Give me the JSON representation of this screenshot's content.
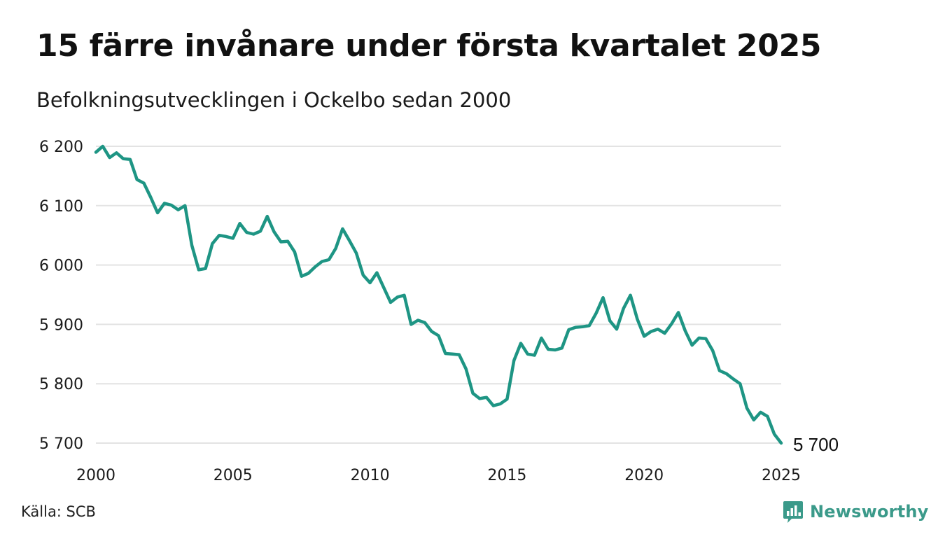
{
  "title": "15 färre invånare under första kvartalet 2025",
  "subtitle": "Befolkningsutvecklingen i Ockelbo sedan 2000",
  "source": "Källa: SCB",
  "brand": {
    "name": "Newsworthy",
    "icon": "newsworthy-chart-bubble-icon",
    "color": "#3b9a8a"
  },
  "chart_data": {
    "type": "line",
    "title": "15 färre invånare under första kvartalet 2025",
    "subtitle": "Befolkningsutvecklingen i Ockelbo sedan 2000",
    "xlabel": "",
    "ylabel": "",
    "xlim": [
      2000,
      2025
    ],
    "ylim": [
      5700,
      6200
    ],
    "grid": true,
    "legend": "none",
    "line_color": "#1e9584",
    "grid_color": "#e3e3e3",
    "x_ticks": [
      {
        "value": 2000,
        "label": "2000"
      },
      {
        "value": 2005,
        "label": "2005"
      },
      {
        "value": 2010,
        "label": "2010"
      },
      {
        "value": 2015,
        "label": "2015"
      },
      {
        "value": 2020,
        "label": "2020"
      },
      {
        "value": 2025,
        "label": "2025"
      }
    ],
    "y_ticks": [
      {
        "value": 5700,
        "label": "5 700"
      },
      {
        "value": 5800,
        "label": "5 800"
      },
      {
        "value": 5900,
        "label": "5 900"
      },
      {
        "value": 6000,
        "label": "6 000"
      },
      {
        "value": 6100,
        "label": "6 100"
      },
      {
        "value": 6200,
        "label": "6 200"
      }
    ],
    "end_label": "5 700",
    "series": [
      {
        "x": [
          "2000-Q1",
          "2000-Q2",
          "2000-Q3",
          "2000-Q4",
          "2001-Q1",
          "2001-Q2",
          "2001-Q3",
          "2001-Q4",
          "2002-Q1",
          "2002-Q2",
          "2002-Q3",
          "2002-Q4",
          "2003-Q1",
          "2003-Q2",
          "2003-Q3",
          "2003-Q4",
          "2004-Q1",
          "2004-Q2",
          "2004-Q3",
          "2004-Q4",
          "2005-Q1",
          "2005-Q2",
          "2005-Q3",
          "2005-Q4",
          "2006-Q1",
          "2006-Q2",
          "2006-Q3",
          "2006-Q4",
          "2007-Q1",
          "2007-Q2",
          "2007-Q3",
          "2007-Q4",
          "2008-Q1",
          "2008-Q2",
          "2008-Q3",
          "2008-Q4",
          "2009-Q1",
          "2009-Q2",
          "2009-Q3",
          "2009-Q4",
          "2010-Q1",
          "2010-Q2",
          "2010-Q3",
          "2010-Q4",
          "2011-Q1",
          "2011-Q2",
          "2011-Q3",
          "2011-Q4",
          "2012-Q1",
          "2012-Q2",
          "2012-Q3",
          "2012-Q4",
          "2013-Q1",
          "2013-Q2",
          "2013-Q3",
          "2013-Q4",
          "2014-Q1",
          "2014-Q2",
          "2014-Q3",
          "2014-Q4",
          "2015-Q1",
          "2015-Q2",
          "2015-Q3",
          "2015-Q4",
          "2016-Q1",
          "2016-Q2",
          "2016-Q3",
          "2016-Q4",
          "2017-Q1",
          "2017-Q2",
          "2017-Q3",
          "2017-Q4",
          "2018-Q1",
          "2018-Q2",
          "2018-Q3",
          "2018-Q4",
          "2019-Q1",
          "2019-Q2",
          "2019-Q3",
          "2019-Q4",
          "2020-Q1",
          "2020-Q2",
          "2020-Q3",
          "2020-Q4",
          "2021-Q1",
          "2021-Q2",
          "2021-Q3",
          "2021-Q4",
          "2022-Q1",
          "2022-Q2",
          "2022-Q3",
          "2022-Q4",
          "2023-Q1",
          "2023-Q2",
          "2023-Q3",
          "2023-Q4",
          "2024-Q1",
          "2024-Q2",
          "2024-Q3",
          "2024-Q4",
          "2025-Q1"
        ],
        "values": [
          6190,
          6200,
          6181,
          6189,
          6179,
          6178,
          6144,
          6138,
          6114,
          6088,
          6104,
          6101,
          6093,
          6100,
          6033,
          5992,
          5994,
          6036,
          6050,
          6048,
          6045,
          6070,
          6055,
          6052,
          6057,
          6082,
          6056,
          6039,
          6040,
          6022,
          5981,
          5986,
          5997,
          6006,
          6009,
          6028,
          6061,
          6041,
          6020,
          5983,
          5970,
          5987,
          5962,
          5937,
          5946,
          5949,
          5900,
          5907,
          5903,
          5888,
          5881,
          5851,
          5850,
          5849,
          5825,
          5784,
          5775,
          5777,
          5763,
          5766,
          5774,
          5839,
          5868,
          5850,
          5848,
          5877,
          5858,
          5857,
          5860,
          5891,
          5895,
          5896,
          5898,
          5919,
          5945,
          5906,
          5892,
          5927,
          5949,
          5909,
          5880,
          5888,
          5892,
          5885,
          5901,
          5920,
          5889,
          5865,
          5877,
          5876,
          5856,
          5822,
          5817,
          5808,
          5800,
          5759,
          5739,
          5752,
          5745,
          5715,
          5700
        ]
      }
    ]
  }
}
